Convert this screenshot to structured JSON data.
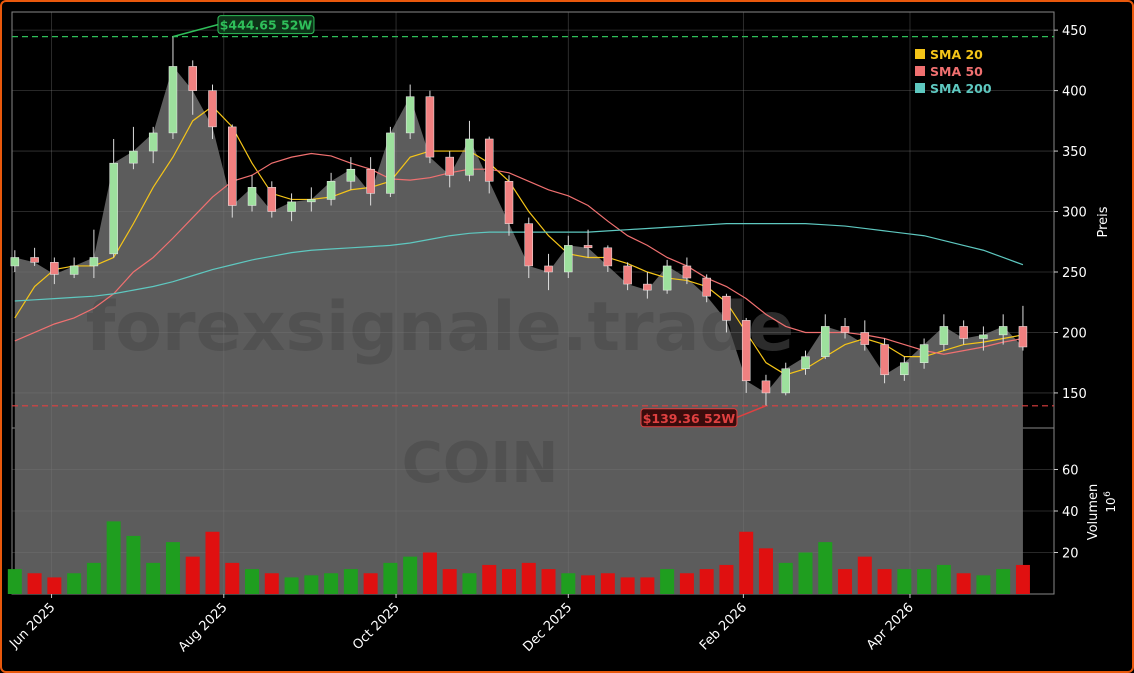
{
  "chart_data": {
    "type": "candlestick",
    "x": [
      "2025-05-19",
      "2025-05-26",
      "2025-06-02",
      "2025-06-09",
      "2025-06-16",
      "2025-06-23",
      "2025-06-30",
      "2025-07-07",
      "2025-07-14",
      "2025-07-21",
      "2025-07-28",
      "2025-08-04",
      "2025-08-11",
      "2025-08-18",
      "2025-08-25",
      "2025-09-01",
      "2025-09-08",
      "2025-09-15",
      "2025-09-22",
      "2025-09-29",
      "2025-10-06",
      "2025-10-13",
      "2025-10-20",
      "2025-10-27",
      "2025-11-03",
      "2025-11-10",
      "2025-11-17",
      "2025-11-24",
      "2025-12-01",
      "2025-12-08",
      "2025-12-15",
      "2025-12-22",
      "2025-12-29",
      "2026-01-05",
      "2026-01-12",
      "2026-01-19",
      "2026-01-26",
      "2026-02-02",
      "2026-02-09",
      "2026-02-16",
      "2026-02-23",
      "2026-03-02",
      "2026-03-09",
      "2026-03-16",
      "2026-03-23",
      "2026-03-30",
      "2026-04-06",
      "2026-04-13",
      "2026-04-20",
      "2026-04-27",
      "2026-05-04",
      "2026-05-11"
    ],
    "open": [
      255,
      262,
      258,
      248,
      255,
      265,
      340,
      350,
      365,
      420,
      400,
      370,
      305,
      320,
      300,
      308,
      310,
      325,
      335,
      315,
      365,
      395,
      345,
      330,
      360,
      325,
      290,
      255,
      250,
      272,
      270,
      255,
      240,
      235,
      255,
      245,
      230,
      210,
      160,
      150,
      170,
      180,
      205,
      200,
      190,
      165,
      175,
      190,
      205,
      195,
      198,
      205
    ],
    "high": [
      268,
      270,
      262,
      262,
      285,
      360,
      370,
      370,
      444.65,
      425,
      405,
      372,
      330,
      325,
      315,
      320,
      332,
      345,
      345,
      370,
      405,
      400,
      350,
      375,
      362,
      330,
      295,
      265,
      280,
      285,
      272,
      258,
      250,
      260,
      262,
      248,
      232,
      212,
      165,
      175,
      185,
      215,
      212,
      210,
      195,
      180,
      195,
      215,
      210,
      205,
      215,
      222
    ],
    "low": [
      250,
      255,
      240,
      245,
      245,
      262,
      335,
      340,
      360,
      380,
      360,
      295,
      300,
      295,
      292,
      300,
      305,
      318,
      305,
      312,
      360,
      340,
      320,
      325,
      315,
      280,
      245,
      235,
      245,
      262,
      250,
      235,
      228,
      232,
      240,
      225,
      200,
      150,
      139.36,
      148,
      165,
      178,
      195,
      185,
      158,
      160,
      170,
      185,
      190,
      185,
      190,
      185
    ],
    "close": [
      262,
      258,
      248,
      255,
      262,
      340,
      350,
      365,
      420,
      400,
      370,
      305,
      320,
      300,
      308,
      310,
      325,
      335,
      315,
      365,
      395,
      345,
      330,
      360,
      325,
      290,
      255,
      250,
      272,
      270,
      255,
      240,
      235,
      255,
      245,
      230,
      210,
      160,
      150,
      170,
      180,
      205,
      200,
      190,
      165,
      175,
      190,
      205,
      195,
      198,
      205,
      188
    ],
    "volume": [
      12,
      10,
      8,
      10,
      15,
      35,
      28,
      15,
      25,
      18,
      30,
      15,
      12,
      10,
      8,
      9,
      10,
      12,
      10,
      15,
      18,
      20,
      12,
      10,
      14,
      12,
      15,
      12,
      10,
      9,
      10,
      8,
      8,
      12,
      10,
      12,
      14,
      30,
      22,
      15,
      20,
      25,
      12,
      18,
      12,
      12,
      12,
      14,
      10,
      9,
      12,
      14
    ],
    "overlays": [
      {
        "name": "SMA 20",
        "color": "#f5c518",
        "values": [
          212,
          238,
          252,
          255,
          255,
          262,
          290,
          320,
          345,
          375,
          387,
          370,
          340,
          315,
          310,
          310,
          312,
          318,
          320,
          325,
          345,
          350,
          350,
          350,
          340,
          325,
          300,
          280,
          265,
          262,
          262,
          257,
          250,
          245,
          243,
          238,
          225,
          200,
          175,
          165,
          170,
          180,
          190,
          195,
          190,
          180,
          180,
          185,
          190,
          192,
          195,
          198
        ]
      },
      {
        "name": "SMA 50",
        "color": "#f07070",
        "values": [
          193,
          200,
          207,
          212,
          220,
          232,
          250,
          262,
          278,
          295,
          312,
          325,
          330,
          340,
          345,
          348,
          346,
          340,
          335,
          327,
          326,
          328,
          332,
          335,
          335,
          332,
          325,
          318,
          313,
          305,
          292,
          280,
          272,
          262,
          255,
          245,
          238,
          228,
          215,
          205,
          200,
          200,
          200,
          198,
          195,
          190,
          185,
          182,
          185,
          188,
          192,
          195
        ]
      },
      {
        "name": "SMA 200",
        "color": "#5ec8c0",
        "values": [
          226,
          227,
          228,
          229,
          230,
          232,
          235,
          238,
          242,
          247,
          252,
          256,
          260,
          263,
          266,
          268,
          269,
          270,
          271,
          272,
          274,
          277,
          280,
          282,
          283,
          283,
          283,
          283,
          283,
          283,
          284,
          285,
          286,
          287,
          288,
          289,
          290,
          290,
          290,
          290,
          290,
          289,
          288,
          286,
          284,
          282,
          280,
          276,
          272,
          268,
          262,
          256
        ]
      }
    ],
    "up_color": "#1f9e1f",
    "down_color": "#e01010",
    "annotations": [
      {
        "text": "$444.65 52W",
        "value": 444.65,
        "color": "#2fbf5a"
      },
      {
        "text": "$139.36 52W",
        "value": 139.36,
        "color": "#e04040"
      }
    ],
    "xlim": [
      "2025-05-18",
      "2026-05-22"
    ],
    "xticks": [
      {
        "value": "2025-06-01",
        "label": "Jun 2025"
      },
      {
        "value": "2025-08-01",
        "label": "Aug 2025"
      },
      {
        "value": "2025-10-01",
        "label": "Oct 2025"
      },
      {
        "value": "2025-12-01",
        "label": "Dec 2025"
      },
      {
        "value": "2026-02-01",
        "label": "Feb 2026"
      },
      {
        "value": "2026-04-01",
        "label": "Apr 2026"
      }
    ],
    "ylim": [
      121,
      465
    ],
    "yticks": [
      150,
      200,
      250,
      300,
      350,
      400,
      450
    ],
    "ylabel": "Preis",
    "volume_ylim": [
      0,
      80
    ],
    "volume_yticks": [
      20,
      40,
      60
    ],
    "volume_label": "Volumen",
    "volume_scale": {
      "base": "10",
      "exponent": "6"
    },
    "watermark": [
      "forexsignale.trade",
      "COIN"
    ],
    "grid": true,
    "legend": "upper right"
  }
}
